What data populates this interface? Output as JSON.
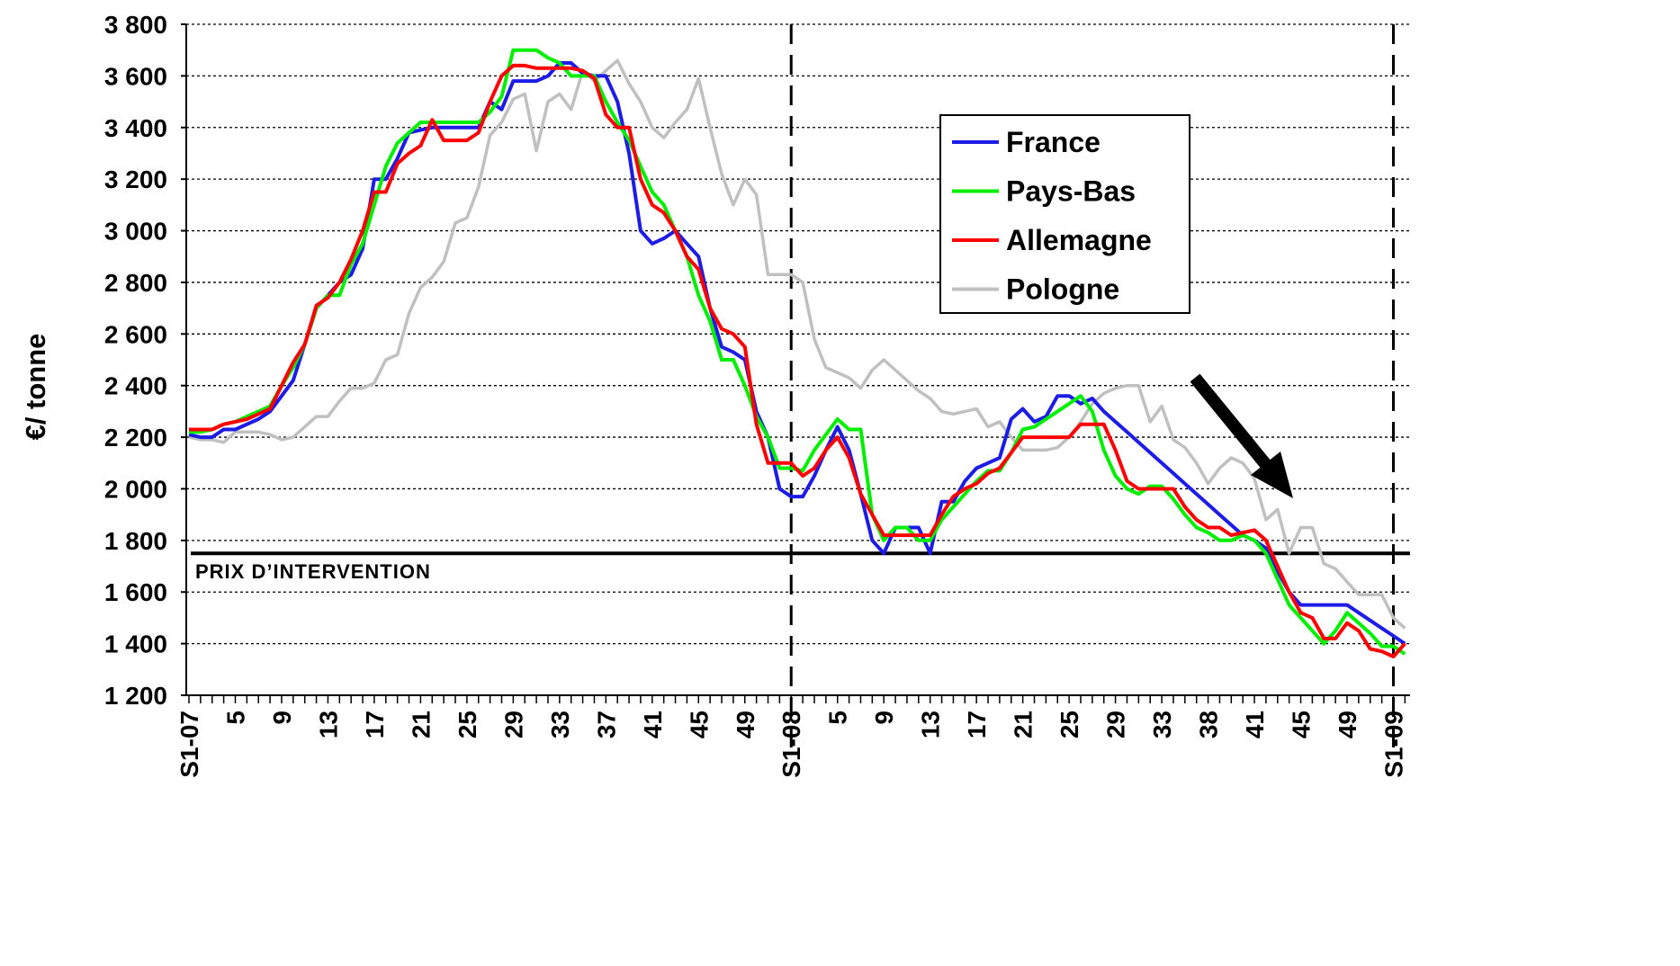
{
  "chart_data": {
    "type": "line",
    "y_label": "€/ tonne",
    "categories": [
      "S1-07",
      null,
      null,
      null,
      "5",
      null,
      null,
      null,
      "9",
      null,
      null,
      null,
      "13",
      null,
      null,
      null,
      "17",
      null,
      null,
      null,
      "21",
      null,
      null,
      null,
      "25",
      null,
      null,
      null,
      "29",
      null,
      null,
      null,
      "33",
      null,
      null,
      null,
      "37",
      null,
      null,
      null,
      "41",
      null,
      null,
      null,
      "45",
      null,
      null,
      null,
      "49",
      null,
      null,
      null,
      "S1-08",
      null,
      null,
      null,
      "5",
      null,
      null,
      null,
      "9",
      null,
      null,
      null,
      "13",
      null,
      null,
      null,
      "17",
      null,
      null,
      null,
      "21",
      null,
      null,
      null,
      "25",
      null,
      null,
      null,
      "29",
      null,
      null,
      null,
      "33",
      null,
      null,
      null,
      "38",
      null,
      null,
      null,
      "41",
      null,
      null,
      null,
      "45",
      null,
      null,
      null,
      "49",
      null,
      null,
      null,
      "S1-09",
      null
    ],
    "series": [
      {
        "name": "France",
        "color": "#1c1ce6",
        "values": [
          2210,
          2200,
          2200,
          2230,
          2230,
          2250,
          2270,
          2300,
          2360,
          2420,
          2560,
          2700,
          2750,
          2800,
          2830,
          2930,
          3200,
          3200,
          3280,
          3380,
          3390,
          3400,
          3400,
          3400,
          3400,
          3400,
          3500,
          3470,
          3580,
          3580,
          3580,
          3600,
          3650,
          3650,
          3610,
          3600,
          3600,
          3500,
          3300,
          3000,
          2950,
          2970,
          3000,
          2950,
          2900,
          2700,
          2550,
          2530,
          2500,
          2300,
          2200,
          2000,
          1970,
          1970,
          2050,
          2150,
          2240,
          2150,
          1980,
          1800,
          1750,
          1850,
          1850,
          1850,
          1750,
          1950,
          1950,
          2030,
          2080,
          2100,
          2120,
          2270,
          2310,
          2260,
          2280,
          2360,
          2360,
          2330,
          2350,
          2300,
          2260,
          2220,
          2180,
          2140,
          2100,
          2060,
          2020,
          1980,
          1940,
          1900,
          1860,
          1820,
          1800,
          1770,
          1680,
          1600,
          1550,
          1550,
          1550,
          1550,
          1550,
          1520,
          1490,
          1460,
          1430,
          1400
        ]
      },
      {
        "name": "Pays-Bas",
        "color": "#00ee00",
        "values": [
          2220,
          2220,
          2230,
          2250,
          2260,
          2280,
          2300,
          2320,
          2400,
          2470,
          2560,
          2700,
          2750,
          2750,
          2870,
          2950,
          3100,
          3250,
          3340,
          3380,
          3420,
          3420,
          3420,
          3420,
          3420,
          3420,
          3460,
          3520,
          3700,
          3700,
          3700,
          3670,
          3650,
          3600,
          3600,
          3600,
          3500,
          3420,
          3350,
          3250,
          3150,
          3100,
          3000,
          2900,
          2750,
          2650,
          2500,
          2500,
          2400,
          2280,
          2200,
          2080,
          2080,
          2070,
          2150,
          2210,
          2270,
          2230,
          2230,
          1900,
          1800,
          1850,
          1850,
          1800,
          1800,
          1880,
          1930,
          1980,
          2030,
          2070,
          2070,
          2140,
          2230,
          2240,
          2270,
          2300,
          2330,
          2360,
          2300,
          2150,
          2050,
          2000,
          1980,
          2010,
          2010,
          1960,
          1900,
          1850,
          1830,
          1800,
          1800,
          1820,
          1800,
          1750,
          1650,
          1550,
          1500,
          1450,
          1400,
          1450,
          1520,
          1480,
          1440,
          1390,
          1390,
          1360
        ]
      },
      {
        "name": "Allemagne",
        "color": "#ff0000",
        "values": [
          2230,
          2230,
          2230,
          2250,
          2260,
          2270,
          2290,
          2310,
          2400,
          2490,
          2560,
          2710,
          2740,
          2800,
          2890,
          3000,
          3150,
          3150,
          3260,
          3300,
          3330,
          3430,
          3350,
          3350,
          3350,
          3380,
          3500,
          3600,
          3640,
          3640,
          3630,
          3630,
          3630,
          3630,
          3620,
          3590,
          3450,
          3400,
          3400,
          3200,
          3100,
          3070,
          3000,
          2900,
          2850,
          2700,
          2620,
          2600,
          2550,
          2250,
          2100,
          2100,
          2100,
          2050,
          2080,
          2150,
          2200,
          2120,
          1980,
          1900,
          1820,
          1820,
          1820,
          1820,
          1820,
          1900,
          1970,
          2000,
          2020,
          2060,
          2080,
          2140,
          2200,
          2200,
          2200,
          2200,
          2200,
          2250,
          2250,
          2250,
          2150,
          2030,
          2000,
          2000,
          2000,
          2000,
          1930,
          1880,
          1850,
          1850,
          1820,
          1830,
          1840,
          1800,
          1700,
          1600,
          1520,
          1500,
          1420,
          1420,
          1480,
          1450,
          1380,
          1370,
          1350,
          1400
        ]
      },
      {
        "name": "Pologne",
        "color": "#c0c0c0",
        "values": [
          2200,
          2190,
          2190,
          2180,
          2220,
          2220,
          2220,
          2210,
          2190,
          2200,
          2240,
          2280,
          2280,
          2340,
          2390,
          2390,
          2410,
          2500,
          2520,
          2680,
          2780,
          2820,
          2880,
          3030,
          3050,
          3170,
          3370,
          3420,
          3510,
          3530,
          3310,
          3500,
          3530,
          3470,
          3620,
          3580,
          3620,
          3660,
          3570,
          3500,
          3400,
          3360,
          3420,
          3470,
          3590,
          3400,
          3220,
          3100,
          3200,
          3140,
          2830,
          2830,
          2830,
          2800,
          2580,
          2470,
          2450,
          2430,
          2390,
          2460,
          2500,
          2460,
          2420,
          2380,
          2350,
          2300,
          2290,
          2300,
          2310,
          2240,
          2260,
          2200,
          2150,
          2150,
          2150,
          2160,
          2200,
          2260,
          2330,
          2370,
          2390,
          2400,
          2400,
          2260,
          2320,
          2190,
          2160,
          2100,
          2020,
          2080,
          2120,
          2100,
          2040,
          1880,
          1920,
          1750,
          1850,
          1850,
          1710,
          1690,
          1640,
          1590,
          1590,
          1590,
          1500,
          1460
        ]
      }
    ],
    "ylim": [
      1200,
      3800
    ],
    "yticks": [
      {
        "value": 1200,
        "label": "1 200"
      },
      {
        "value": 1400,
        "label": "1 400"
      },
      {
        "value": 1600,
        "label": "1 600"
      },
      {
        "value": 1800,
        "label": "1 800"
      },
      {
        "value": 2000,
        "label": "2 000"
      },
      {
        "value": 2200,
        "label": "2 200"
      },
      {
        "value": 2400,
        "label": "2 400"
      },
      {
        "value": 2600,
        "label": "2 600"
      },
      {
        "value": 2800,
        "label": "2 800"
      },
      {
        "value": 3000,
        "label": "3 000"
      },
      {
        "value": 3200,
        "label": "3 200"
      },
      {
        "value": 3400,
        "label": "3 400"
      },
      {
        "value": 3600,
        "label": "3 600"
      },
      {
        "value": 3800,
        "label": "3 800"
      }
    ],
    "grid": true,
    "vlines": [
      52,
      104
    ],
    "hline": {
      "value": 1750,
      "label": "PRIX D’INTERVENTION"
    },
    "legend": "upper right"
  }
}
